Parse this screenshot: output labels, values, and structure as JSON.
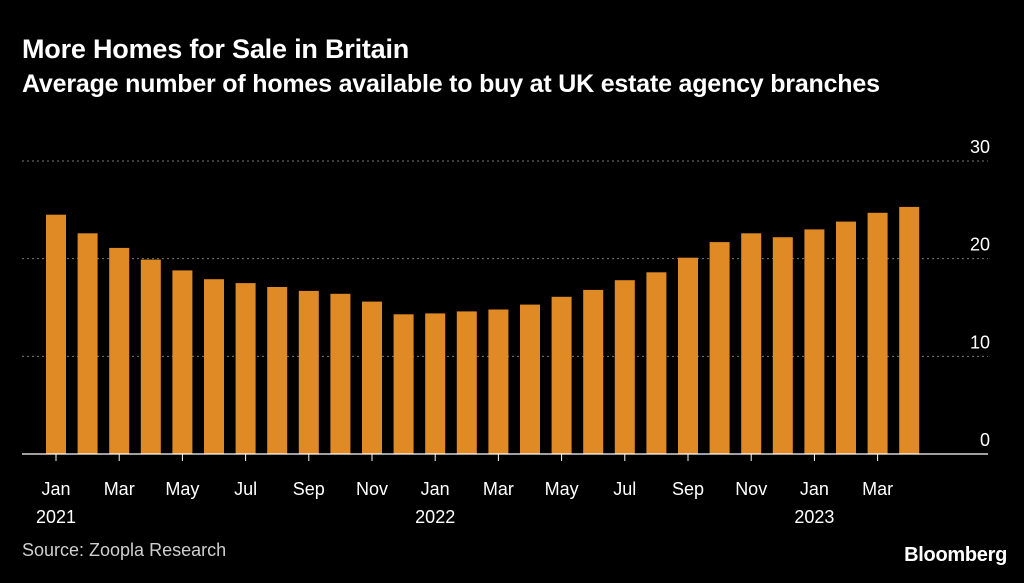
{
  "header": {
    "title": "More Homes for Sale in Britain",
    "subtitle": "Average number of homes available to buy at UK estate agency branches"
  },
  "footer": {
    "source": "Source: Zoopla Research",
    "brand": "Bloomberg"
  },
  "colors": {
    "bar": "#e08a26",
    "background": "#000000",
    "grid": "#7a7a7a",
    "text": "#ffffff"
  },
  "chart_data": {
    "type": "bar",
    "title": "More Homes for Sale in Britain",
    "subtitle": "Average number of homes available to buy at UK estate agency branches",
    "xlabel": "",
    "ylabel": "",
    "ylim": [
      0,
      30
    ],
    "yticks": [
      0,
      10,
      20,
      30
    ],
    "y_axis_position": "right",
    "grid": true,
    "categories": [
      "Jan 2021",
      "Feb 2021",
      "Mar 2021",
      "Apr 2021",
      "May 2021",
      "Jun 2021",
      "Jul 2021",
      "Aug 2021",
      "Sep 2021",
      "Oct 2021",
      "Nov 2021",
      "Dec 2021",
      "Jan 2022",
      "Feb 2022",
      "Mar 2022",
      "Apr 2022",
      "May 2022",
      "Jun 2022",
      "Jul 2022",
      "Aug 2022",
      "Sep 2022",
      "Oct 2022",
      "Nov 2022",
      "Dec 2022",
      "Jan 2023",
      "Feb 2023",
      "Mar 2023",
      "Apr 2023"
    ],
    "values": [
      24.5,
      22.6,
      21.1,
      19.9,
      18.8,
      17.9,
      17.5,
      17.1,
      16.7,
      16.4,
      15.6,
      14.3,
      14.4,
      14.6,
      14.8,
      15.3,
      16.1,
      16.8,
      17.8,
      18.6,
      20.1,
      21.7,
      22.6,
      22.2,
      23.0,
      23.8,
      24.7,
      25.3
    ],
    "x_tick_labels": [
      {
        "index": 0,
        "month": "Jan",
        "year": "2021"
      },
      {
        "index": 2,
        "month": "Mar",
        "year": ""
      },
      {
        "index": 4,
        "month": "May",
        "year": ""
      },
      {
        "index": 6,
        "month": "Jul",
        "year": ""
      },
      {
        "index": 8,
        "month": "Sep",
        "year": ""
      },
      {
        "index": 10,
        "month": "Nov",
        "year": ""
      },
      {
        "index": 12,
        "month": "Jan",
        "year": "2022"
      },
      {
        "index": 14,
        "month": "Mar",
        "year": ""
      },
      {
        "index": 16,
        "month": "May",
        "year": ""
      },
      {
        "index": 18,
        "month": "Jul",
        "year": ""
      },
      {
        "index": 20,
        "month": "Sep",
        "year": ""
      },
      {
        "index": 22,
        "month": "Nov",
        "year": ""
      },
      {
        "index": 24,
        "month": "Jan",
        "year": "2023"
      },
      {
        "index": 26,
        "month": "Mar",
        "year": ""
      }
    ]
  }
}
